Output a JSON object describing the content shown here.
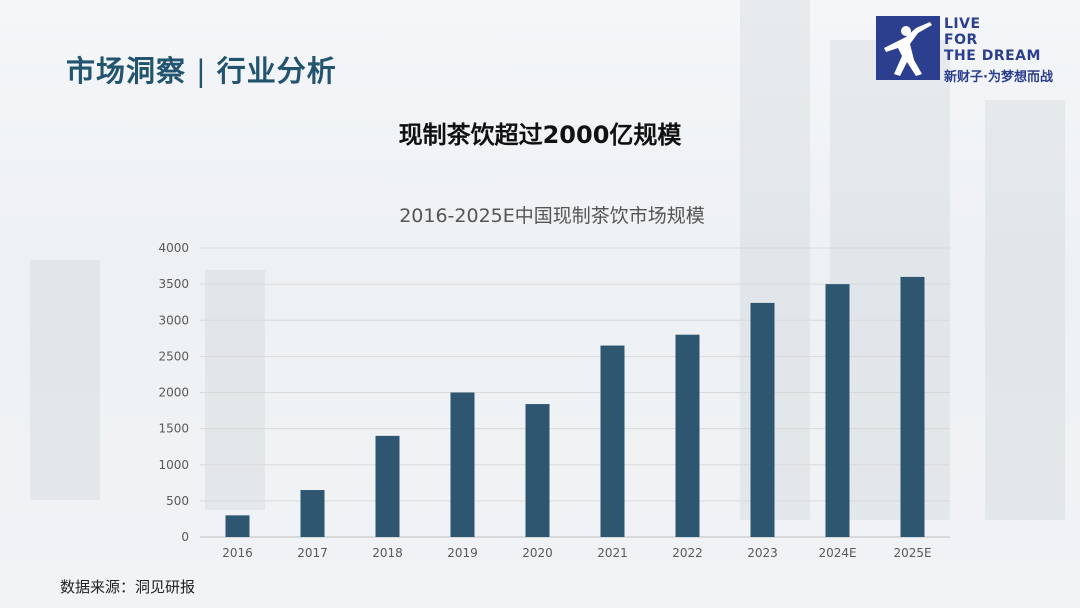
{
  "header": {
    "section_title_left": "市场洞察",
    "section_title_sep": "|",
    "section_title_right": "行业分析"
  },
  "logo": {
    "line1": "LIVE",
    "line2": "FOR",
    "line3": "THE DREAM",
    "slogan": "新财子·为梦想而战",
    "icon": "figure-icon"
  },
  "main_title": "现制茶饮超过2000亿规模",
  "chart_data": {
    "type": "bar",
    "title": "2016-2025E中国现制茶饮市场规模",
    "xlabel": "",
    "ylabel": "",
    "categories": [
      "2016",
      "2017",
      "2018",
      "2019",
      "2020",
      "2021",
      "2022",
      "2023",
      "2024E",
      "2025E"
    ],
    "values": [
      300,
      650,
      1400,
      2000,
      1840,
      2650,
      2800,
      3240,
      3500,
      3600
    ],
    "ylim": [
      0,
      4000
    ],
    "yticks": [
      0,
      500,
      1000,
      1500,
      2000,
      2500,
      3000,
      3500,
      4000
    ],
    "grid": true,
    "legend": "none",
    "bar_color": "#2e5670"
  },
  "source": "数据来源：洞见研报",
  "colors": {
    "title_blue": "#23546f",
    "logo_blue": "#2c3f8f",
    "bar": "#2e5670"
  }
}
